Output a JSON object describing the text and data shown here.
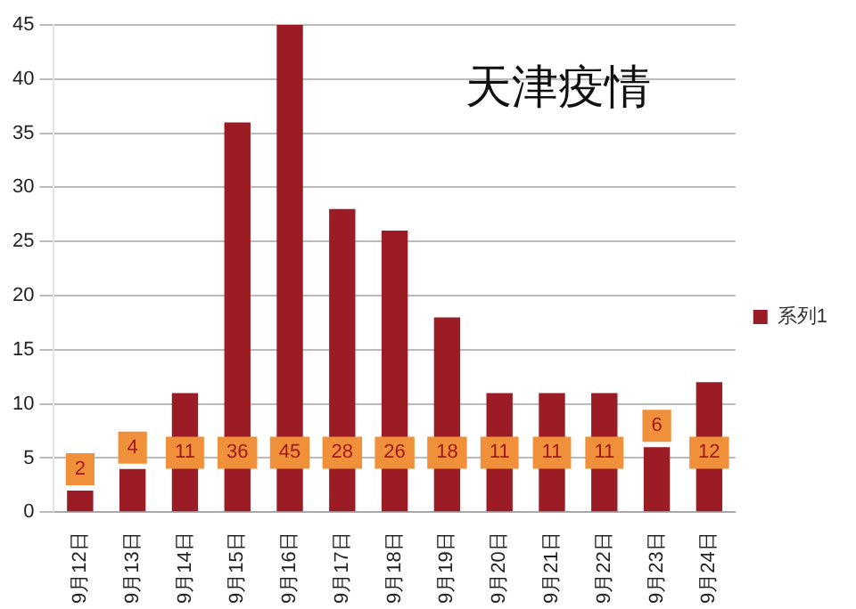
{
  "chart_data": {
    "type": "bar",
    "title": "天津疫情",
    "categories": [
      "9月12日",
      "9月13日",
      "9月14日",
      "9月15日",
      "9月16日",
      "9月17日",
      "9月18日",
      "9月19日",
      "9月20日",
      "9月21日",
      "9月22日",
      "9月23日",
      "9月24日"
    ],
    "series": [
      {
        "name": "系列1",
        "color": "#9b1c24",
        "values": [
          2,
          4,
          11,
          36,
          45,
          28,
          26,
          18,
          11,
          11,
          11,
          6,
          12
        ]
      }
    ],
    "ylim": [
      0,
      45
    ],
    "yticks": [
      0,
      5,
      10,
      15,
      20,
      25,
      30,
      35,
      40,
      45
    ],
    "grid": "y",
    "legend": "right",
    "data_labels": true
  }
}
